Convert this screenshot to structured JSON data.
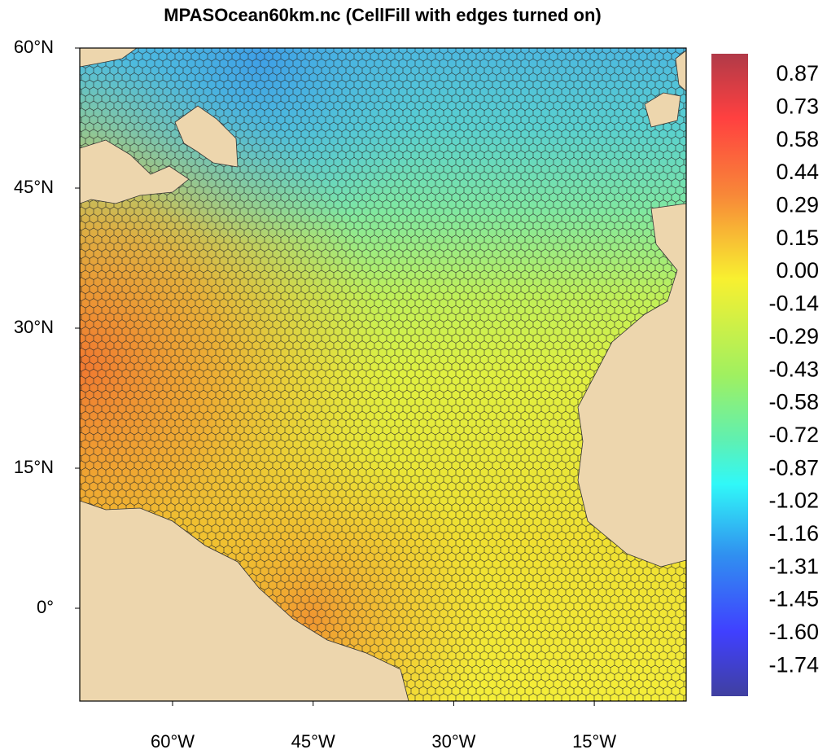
{
  "title": "MPASOcean60km.nc (CellFill with edges turned on)",
  "map": {
    "lat_labels": [
      "60°N",
      "45°N",
      "30°N",
      "15°N",
      "0°"
    ],
    "lon_labels": [
      "60°W",
      "45°W",
      "30°W",
      "15°W"
    ]
  },
  "colorbar": {
    "labels": [
      "0.87",
      "0.73",
      "0.58",
      "0.44",
      "0.29",
      "0.15",
      "0.00",
      "-0.14",
      "-0.29",
      "-0.43",
      "-0.58",
      "-0.72",
      "-0.87",
      "-1.02",
      "-1.16",
      "-1.31",
      "-1.45",
      "-1.60",
      "-1.74"
    ]
  }
}
